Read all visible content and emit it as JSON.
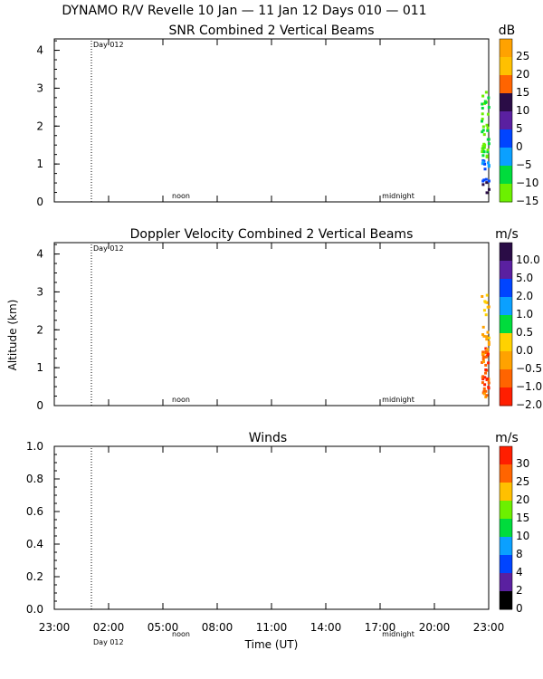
{
  "header": {
    "title": "DYNAMO R/V Revelle  10 Jan — 11 Jan 12 Days 010 — 011"
  },
  "chart_data": [
    {
      "type": "heatmap",
      "title": "SNR Combined 2 Vertical Beams",
      "ylim": [
        0,
        4.3
      ],
      "yticks": [
        "0",
        "1",
        "2",
        "3",
        "4"
      ],
      "markers": [
        "Day 012",
        "noon",
        "midnight"
      ],
      "colorbar": {
        "unit": "dB",
        "labels": [
          "25",
          "20",
          "15",
          "10",
          "5",
          "0",
          "−5",
          "−10",
          "−15"
        ],
        "colors": [
          "#ffa200",
          "#ffc000",
          "#ff6400",
          "#2a0c46",
          "#5a20a0",
          "#0044ff",
          "#0aa0ff",
          "#00dc3c",
          "#6cf000"
        ]
      }
    },
    {
      "type": "heatmap",
      "title": "Doppler Velocity Combined 2 Vertical Beams",
      "ylabel": "Altitude (km)",
      "ylim": [
        0,
        4.3
      ],
      "yticks": [
        "0",
        "1",
        "2",
        "3",
        "4"
      ],
      "markers": [
        "Day 012",
        "noon",
        "midnight"
      ],
      "colorbar": {
        "unit": "m/s",
        "labels": [
          "10.0",
          "5.0",
          "2.0",
          "1.0",
          "0.5",
          "0.0",
          "−0.5",
          "−1.0",
          "−2.0"
        ],
        "colors": [
          "#2a0c46",
          "#5a20a0",
          "#0044ff",
          "#0aa0ff",
          "#00dc3c",
          "#ffd200",
          "#ffa200",
          "#ff6400",
          "#ff1e00"
        ]
      }
    },
    {
      "type": "heatmap",
      "title": "Winds",
      "xlabel": "Time (UT)",
      "ylim": [
        0,
        1.0
      ],
      "yticks": [
        "0.0",
        "0.2",
        "0.4",
        "0.6",
        "0.8",
        "1.0"
      ],
      "xticks": [
        "23:00",
        "02:00",
        "05:00",
        "08:00",
        "11:00",
        "14:00",
        "17:00",
        "20:00",
        "23:00"
      ],
      "markers": [
        "Day 012",
        "noon",
        "midnight"
      ],
      "colorbar": {
        "unit": "m/s",
        "labels": [
          "30",
          "25",
          "20",
          "15",
          "10",
          "8",
          "4",
          "2",
          "0"
        ],
        "colors": [
          "#ff1e00",
          "#ff6400",
          "#ffc000",
          "#6cf000",
          "#00dc3c",
          "#0aa0ff",
          "#0044ff",
          "#5a20a0",
          "#000000"
        ]
      }
    }
  ]
}
